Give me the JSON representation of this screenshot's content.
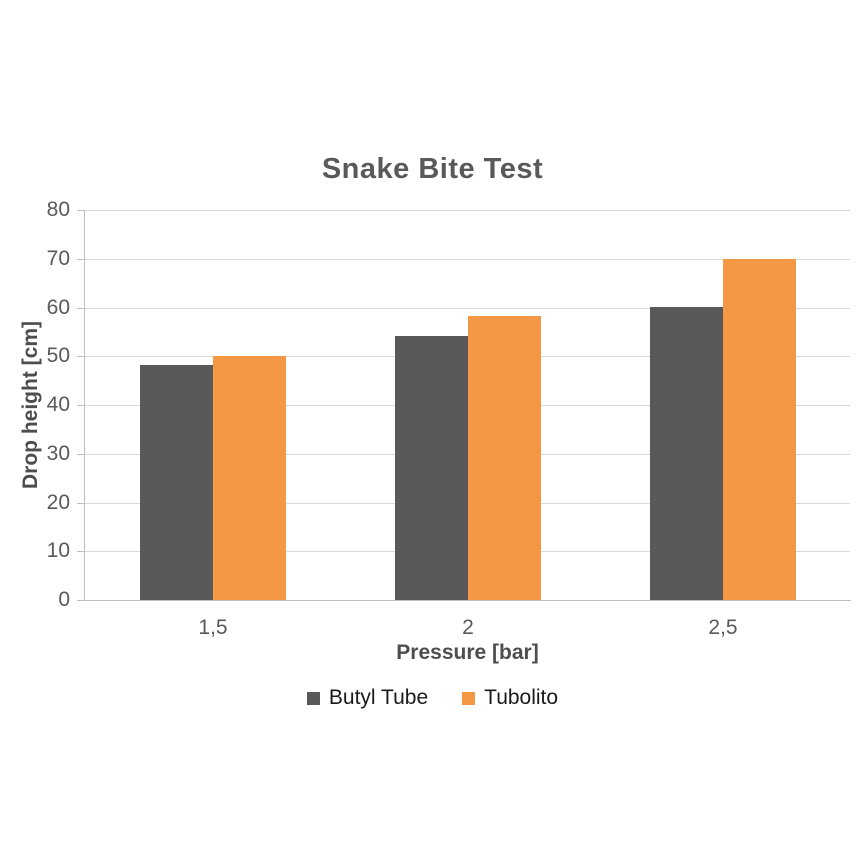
{
  "chart_data": {
    "type": "bar",
    "title": "Snake Bite Test",
    "categories": [
      "1,5",
      "2",
      "2,5"
    ],
    "series": [
      {
        "name": "Butyl Tube",
        "color": "#595959",
        "values": [
          48.2,
          54.2,
          60
        ]
      },
      {
        "name": "Tubolito",
        "color": "#F59846",
        "values": [
          50,
          58.2,
          70
        ]
      }
    ],
    "xlabel": "Pressure [bar]",
    "ylabel": "Drop height [cm]",
    "ylim": [
      0,
      80
    ],
    "ytick_step": 10,
    "grid": true,
    "legend_position": "bottom",
    "colors": {
      "title_text": "#595959",
      "tick_text": "#595959",
      "axis_title_text": "#4d4d4d",
      "legend_text": "#1a1a1a",
      "gridline": "#d9d9d9",
      "axis_line": "#bfbfbf",
      "background": "#ffffff"
    }
  }
}
